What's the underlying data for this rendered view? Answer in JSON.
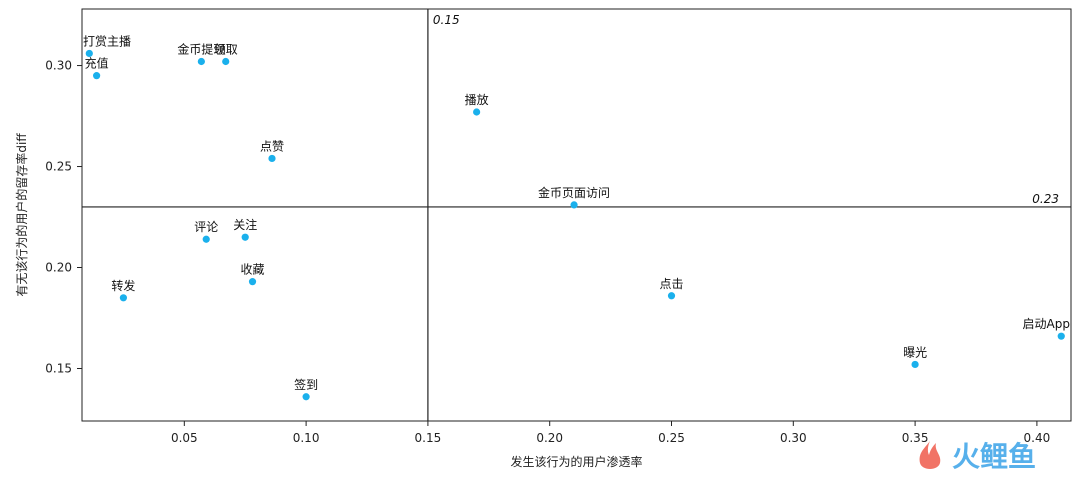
{
  "chart_data": {
    "type": "scatter",
    "title": "",
    "xlabel": "发生该行为的用户渗透率",
    "ylabel": "有无该行为的用户的留存率diff",
    "xlim": [
      0.008,
      0.414
    ],
    "ylim": [
      0.124,
      0.328
    ],
    "xticks": [
      0.05,
      0.1,
      0.15,
      0.2,
      0.25,
      0.3,
      0.35,
      0.4
    ],
    "xtick_labels": [
      "0.05",
      "0.10",
      "0.15",
      "0.20",
      "0.25",
      "0.30",
      "0.35",
      "0.40"
    ],
    "yticks": [
      0.15,
      0.2,
      0.25,
      0.3
    ],
    "ytick_labels": [
      "0.15",
      "0.20",
      "0.25",
      "0.30"
    ],
    "ref_x": 0.15,
    "ref_x_label": "0.15",
    "ref_y": 0.23,
    "ref_y_label": "0.23",
    "point_color": "#1ab0ec",
    "points": [
      {
        "label": "打赏主播",
        "x": 0.011,
        "y": 0.306
      },
      {
        "label": "充值",
        "x": 0.014,
        "y": 0.295
      },
      {
        "label": "金币提现",
        "x": 0.057,
        "y": 0.302
      },
      {
        "label": "领取",
        "x": 0.067,
        "y": 0.302
      },
      {
        "label": "点赞",
        "x": 0.086,
        "y": 0.254
      },
      {
        "label": "播放",
        "x": 0.17,
        "y": 0.277
      },
      {
        "label": "金币页面访问",
        "x": 0.21,
        "y": 0.231
      },
      {
        "label": "评论",
        "x": 0.059,
        "y": 0.214
      },
      {
        "label": "关注",
        "x": 0.075,
        "y": 0.215
      },
      {
        "label": "转发",
        "x": 0.025,
        "y": 0.185
      },
      {
        "label": "收藏",
        "x": 0.078,
        "y": 0.193
      },
      {
        "label": "签到",
        "x": 0.1,
        "y": 0.136
      },
      {
        "label": "点击",
        "x": 0.25,
        "y": 0.186
      },
      {
        "label": "曝光",
        "x": 0.35,
        "y": 0.152
      },
      {
        "label": "启动App",
        "x": 0.41,
        "y": 0.166
      }
    ]
  },
  "watermark": {
    "icon": "huoli-logo-icon",
    "text": "火鲤鱼",
    "colors": [
      "#ef5b4b",
      "#3aa3e8"
    ]
  }
}
